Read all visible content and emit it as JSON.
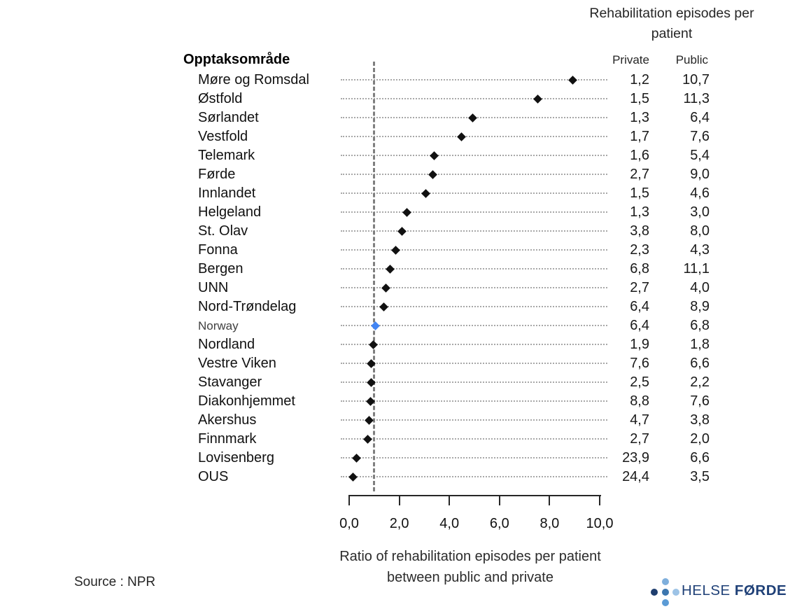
{
  "header": {
    "right_title": "Rehabilitation episodes per patient",
    "col_private": "Private",
    "col_public": "Public",
    "left_title": "Opptaksområde"
  },
  "chart_data": {
    "type": "scatter",
    "title": "Rehabilitation episodes per patient",
    "xlabel": "Ratio of rehabilitation episodes per patient between public and private",
    "xlim": [
      0,
      10
    ],
    "x_ticks": [
      "0,0",
      "2,0",
      "4,0",
      "6,0",
      "8,0",
      "10,0"
    ],
    "x_tick_values": [
      0,
      2,
      4,
      6,
      8,
      10
    ],
    "reference_line_x": 1.0,
    "grid": "dotted row leaders",
    "legend_position": "none",
    "marker_color": "#111111",
    "highlight_color": "#4285f4",
    "rows": [
      {
        "label": "Møre og Romsdal",
        "private": "1,2",
        "public": "10,7",
        "ratio": 8.92,
        "highlight": false
      },
      {
        "label": "Østfold",
        "private": "1,5",
        "public": "11,3",
        "ratio": 7.53,
        "highlight": false
      },
      {
        "label": "Sørlandet",
        "private": "1,3",
        "public": "6,4",
        "ratio": 4.92,
        "highlight": false
      },
      {
        "label": "Vestfold",
        "private": "1,7",
        "public": "7,6",
        "ratio": 4.47,
        "highlight": false
      },
      {
        "label": "Telemark",
        "private": "1,6",
        "public": "5,4",
        "ratio": 3.38,
        "highlight": false
      },
      {
        "label": "Førde",
        "private": "2,7",
        "public": "9,0",
        "ratio": 3.33,
        "highlight": false
      },
      {
        "label": "Innlandet",
        "private": "1,5",
        "public": "4,6",
        "ratio": 3.07,
        "highlight": false
      },
      {
        "label": "Helgeland",
        "private": "1,3",
        "public": "3,0",
        "ratio": 2.31,
        "highlight": false
      },
      {
        "label": "St. Olav",
        "private": "3,8",
        "public": "8,0",
        "ratio": 2.11,
        "highlight": false
      },
      {
        "label": "Fonna",
        "private": "2,3",
        "public": "4,3",
        "ratio": 1.87,
        "highlight": false
      },
      {
        "label": "Bergen",
        "private": "6,8",
        "public": "11,1",
        "ratio": 1.63,
        "highlight": false
      },
      {
        "label": "UNN",
        "private": "2,7",
        "public": "4,0",
        "ratio": 1.48,
        "highlight": false
      },
      {
        "label": "Nord-Trøndelag",
        "private": "6,4",
        "public": "8,9",
        "ratio": 1.39,
        "highlight": false
      },
      {
        "label": "Norway",
        "private": "6,4",
        "public": "6,8",
        "ratio": 1.06,
        "highlight": true
      },
      {
        "label": "Nordland",
        "private": "1,9",
        "public": "1,8",
        "ratio": 0.95,
        "highlight": false
      },
      {
        "label": "Vestre Viken",
        "private": "7,6",
        "public": "6,6",
        "ratio": 0.87,
        "highlight": false
      },
      {
        "label": "Stavanger",
        "private": "2,5",
        "public": "2,2",
        "ratio": 0.88,
        "highlight": false
      },
      {
        "label": "Diakonhjemmet",
        "private": "8,8",
        "public": "7,6",
        "ratio": 0.86,
        "highlight": false
      },
      {
        "label": "Akershus",
        "private": "4,7",
        "public": "3,8",
        "ratio": 0.81,
        "highlight": false
      },
      {
        "label": "Finnmark",
        "private": "2,7",
        "public": "2,0",
        "ratio": 0.74,
        "highlight": false
      },
      {
        "label": "Lovisenberg",
        "private": "23,9",
        "public": "6,6",
        "ratio": 0.28,
        "highlight": false
      },
      {
        "label": "OUS",
        "private": "24,4",
        "public": "3,5",
        "ratio": 0.14,
        "highlight": false
      }
    ],
    "xlabel_lines": "Ratio of rehabilitation episodes per patient between public and private"
  },
  "footer": {
    "source": "Source : NPR",
    "logo_text_regular": "HELSE ",
    "logo_text_bold": "FØRDE",
    "logo_dot_colors": [
      "#7fafdc",
      "#1f3e6e",
      "#3c76ae",
      "#9dc3e6",
      "#5b9bd5"
    ]
  }
}
